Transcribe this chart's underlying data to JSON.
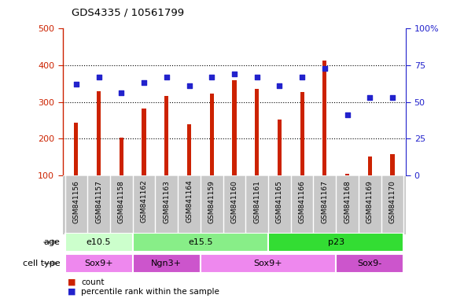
{
  "title": "GDS4335 / 10561799",
  "samples": [
    "GSM841156",
    "GSM841157",
    "GSM841158",
    "GSM841162",
    "GSM841163",
    "GSM841164",
    "GSM841159",
    "GSM841160",
    "GSM841161",
    "GSM841165",
    "GSM841166",
    "GSM841167",
    "GSM841168",
    "GSM841169",
    "GSM841170"
  ],
  "counts": [
    243,
    330,
    202,
    283,
    317,
    240,
    322,
    360,
    336,
    252,
    327,
    413,
    103,
    151,
    157
  ],
  "percentiles": [
    62,
    67,
    56,
    63,
    67,
    61,
    67,
    69,
    67,
    61,
    67,
    73,
    41,
    53,
    53
  ],
  "ylim_left": [
    100,
    500
  ],
  "ylim_right": [
    0,
    100
  ],
  "yticks_left": [
    100,
    200,
    300,
    400,
    500
  ],
  "yticks_right": [
    0,
    25,
    50,
    75,
    100
  ],
  "bar_color": "#cc2200",
  "dot_color": "#2222cc",
  "bar_bottom": 100,
  "bar_width": 0.18,
  "age_groups": [
    {
      "label": "e10.5",
      "start": 0,
      "end": 3,
      "color": "#ccffcc"
    },
    {
      "label": "e15.5",
      "start": 3,
      "end": 9,
      "color": "#88ee88"
    },
    {
      "label": "p23",
      "start": 9,
      "end": 15,
      "color": "#33dd33"
    }
  ],
  "cell_groups": [
    {
      "label": "Sox9+",
      "start": 0,
      "end": 3,
      "color": "#ee88ee"
    },
    {
      "label": "Ngn3+",
      "start": 3,
      "end": 6,
      "color": "#cc55cc"
    },
    {
      "label": "Sox9+",
      "start": 6,
      "end": 12,
      "color": "#ee88ee"
    },
    {
      "label": "Sox9-",
      "start": 12,
      "end": 15,
      "color": "#cc55cc"
    }
  ],
  "legend_count_label": "count",
  "legend_pct_label": "percentile rank within the sample",
  "bar_axis_color": "#cc2200",
  "pct_axis_color": "#2222cc",
  "grid_dotted_color": "#000000",
  "xlabels_bg_color": "#c8c8c8",
  "xlabels_sep_color": "#aaaaaa"
}
